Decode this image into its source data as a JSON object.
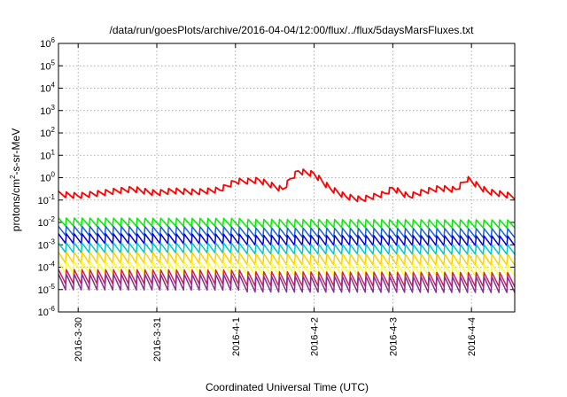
{
  "chart_data": {
    "type": "line",
    "title": "/data/run/goesPlots/archive/2016-04-04/12:00/flux/../flux/5daysMarsFluxes.txt",
    "xlabel": "Coordinated Universal Time (UTC)",
    "ylabel": {
      "base": "protons/cm",
      "sup": "2",
      "rest": "-s-sr-MeV"
    },
    "yscale": "log",
    "ylim": [
      1e-06,
      1000000.0
    ],
    "ytick_exponents": [
      -6,
      -5,
      -4,
      -3,
      -2,
      -1,
      0,
      1,
      2,
      3,
      4,
      5,
      6
    ],
    "ytick_base": "10",
    "x_ticks": [
      "2016-3-30",
      "2016-3-31",
      "2016-4-1",
      "2016-4-2",
      "2016-4-3",
      "2016-4-4"
    ],
    "xlim_days": [
      -0.25,
      5.55
    ],
    "grid": true,
    "series": [
      {
        "color": "#ff0000",
        "period_days": 0.1,
        "spike_ratio": 1.9,
        "x": [
          -0.25,
          0.0,
          0.3,
          0.5,
          0.7,
          0.9,
          1.0,
          1.2,
          1.5,
          1.8,
          2.0,
          2.3,
          2.6,
          2.7,
          2.8,
          3.0,
          3.2,
          3.4,
          3.6,
          3.9,
          4.0,
          4.2,
          4.4,
          4.6,
          4.8,
          4.95,
          5.2,
          5.55
        ],
        "y": [
          0.18,
          0.15,
          0.2,
          0.25,
          0.3,
          0.22,
          0.2,
          0.25,
          0.22,
          0.28,
          0.65,
          0.8,
          0.3,
          0.9,
          2.0,
          1.5,
          0.35,
          0.15,
          0.11,
          0.2,
          0.35,
          0.15,
          0.25,
          0.35,
          0.3,
          0.9,
          0.25,
          0.15
        ]
      },
      {
        "color": "#00ee00",
        "period_days": 0.1,
        "spike_ratio": 2.5,
        "x": [
          -0.25,
          5.55
        ],
        "y": [
          0.01,
          0.009
        ]
      },
      {
        "color": "#1a5fe0",
        "period_days": 0.1,
        "spike_ratio": 2.8,
        "x": [
          -0.25,
          5.55
        ],
        "y": [
          0.004,
          0.0035
        ]
      },
      {
        "color": "#0000d8",
        "period_days": 0.1,
        "spike_ratio": 3.0,
        "x": [
          -0.25,
          5.55
        ],
        "y": [
          0.0018,
          0.0016
        ]
      },
      {
        "color": "#00c8c8",
        "period_days": 0.1,
        "spike_ratio": 3.0,
        "x": [
          -0.25,
          5.55
        ],
        "y": [
          0.0007,
          0.00065
        ]
      },
      {
        "color": "#ffd000",
        "period_days": 0.1,
        "spike_ratio": 3.5,
        "x": [
          -0.25,
          5.55
        ],
        "y": [
          0.00025,
          0.00023
        ]
      },
      {
        "color": "#ffff33",
        "period_days": 0.1,
        "spike_ratio": 4.0,
        "x": [
          -0.25,
          5.55
        ],
        "y": [
          9e-05,
          8e-05
        ]
      },
      {
        "color": "#cc2255",
        "period_days": 0.1,
        "spike_ratio": 5.0,
        "x": [
          -0.25,
          5.55
        ],
        "y": [
          3.5e-05,
          3e-05
        ]
      },
      {
        "color": "#8a3090",
        "period_days": 0.1,
        "spike_ratio": 6.0,
        "x": [
          -0.25,
          5.55
        ],
        "y": [
          2e-05,
          1.8e-05
        ]
      }
    ]
  }
}
